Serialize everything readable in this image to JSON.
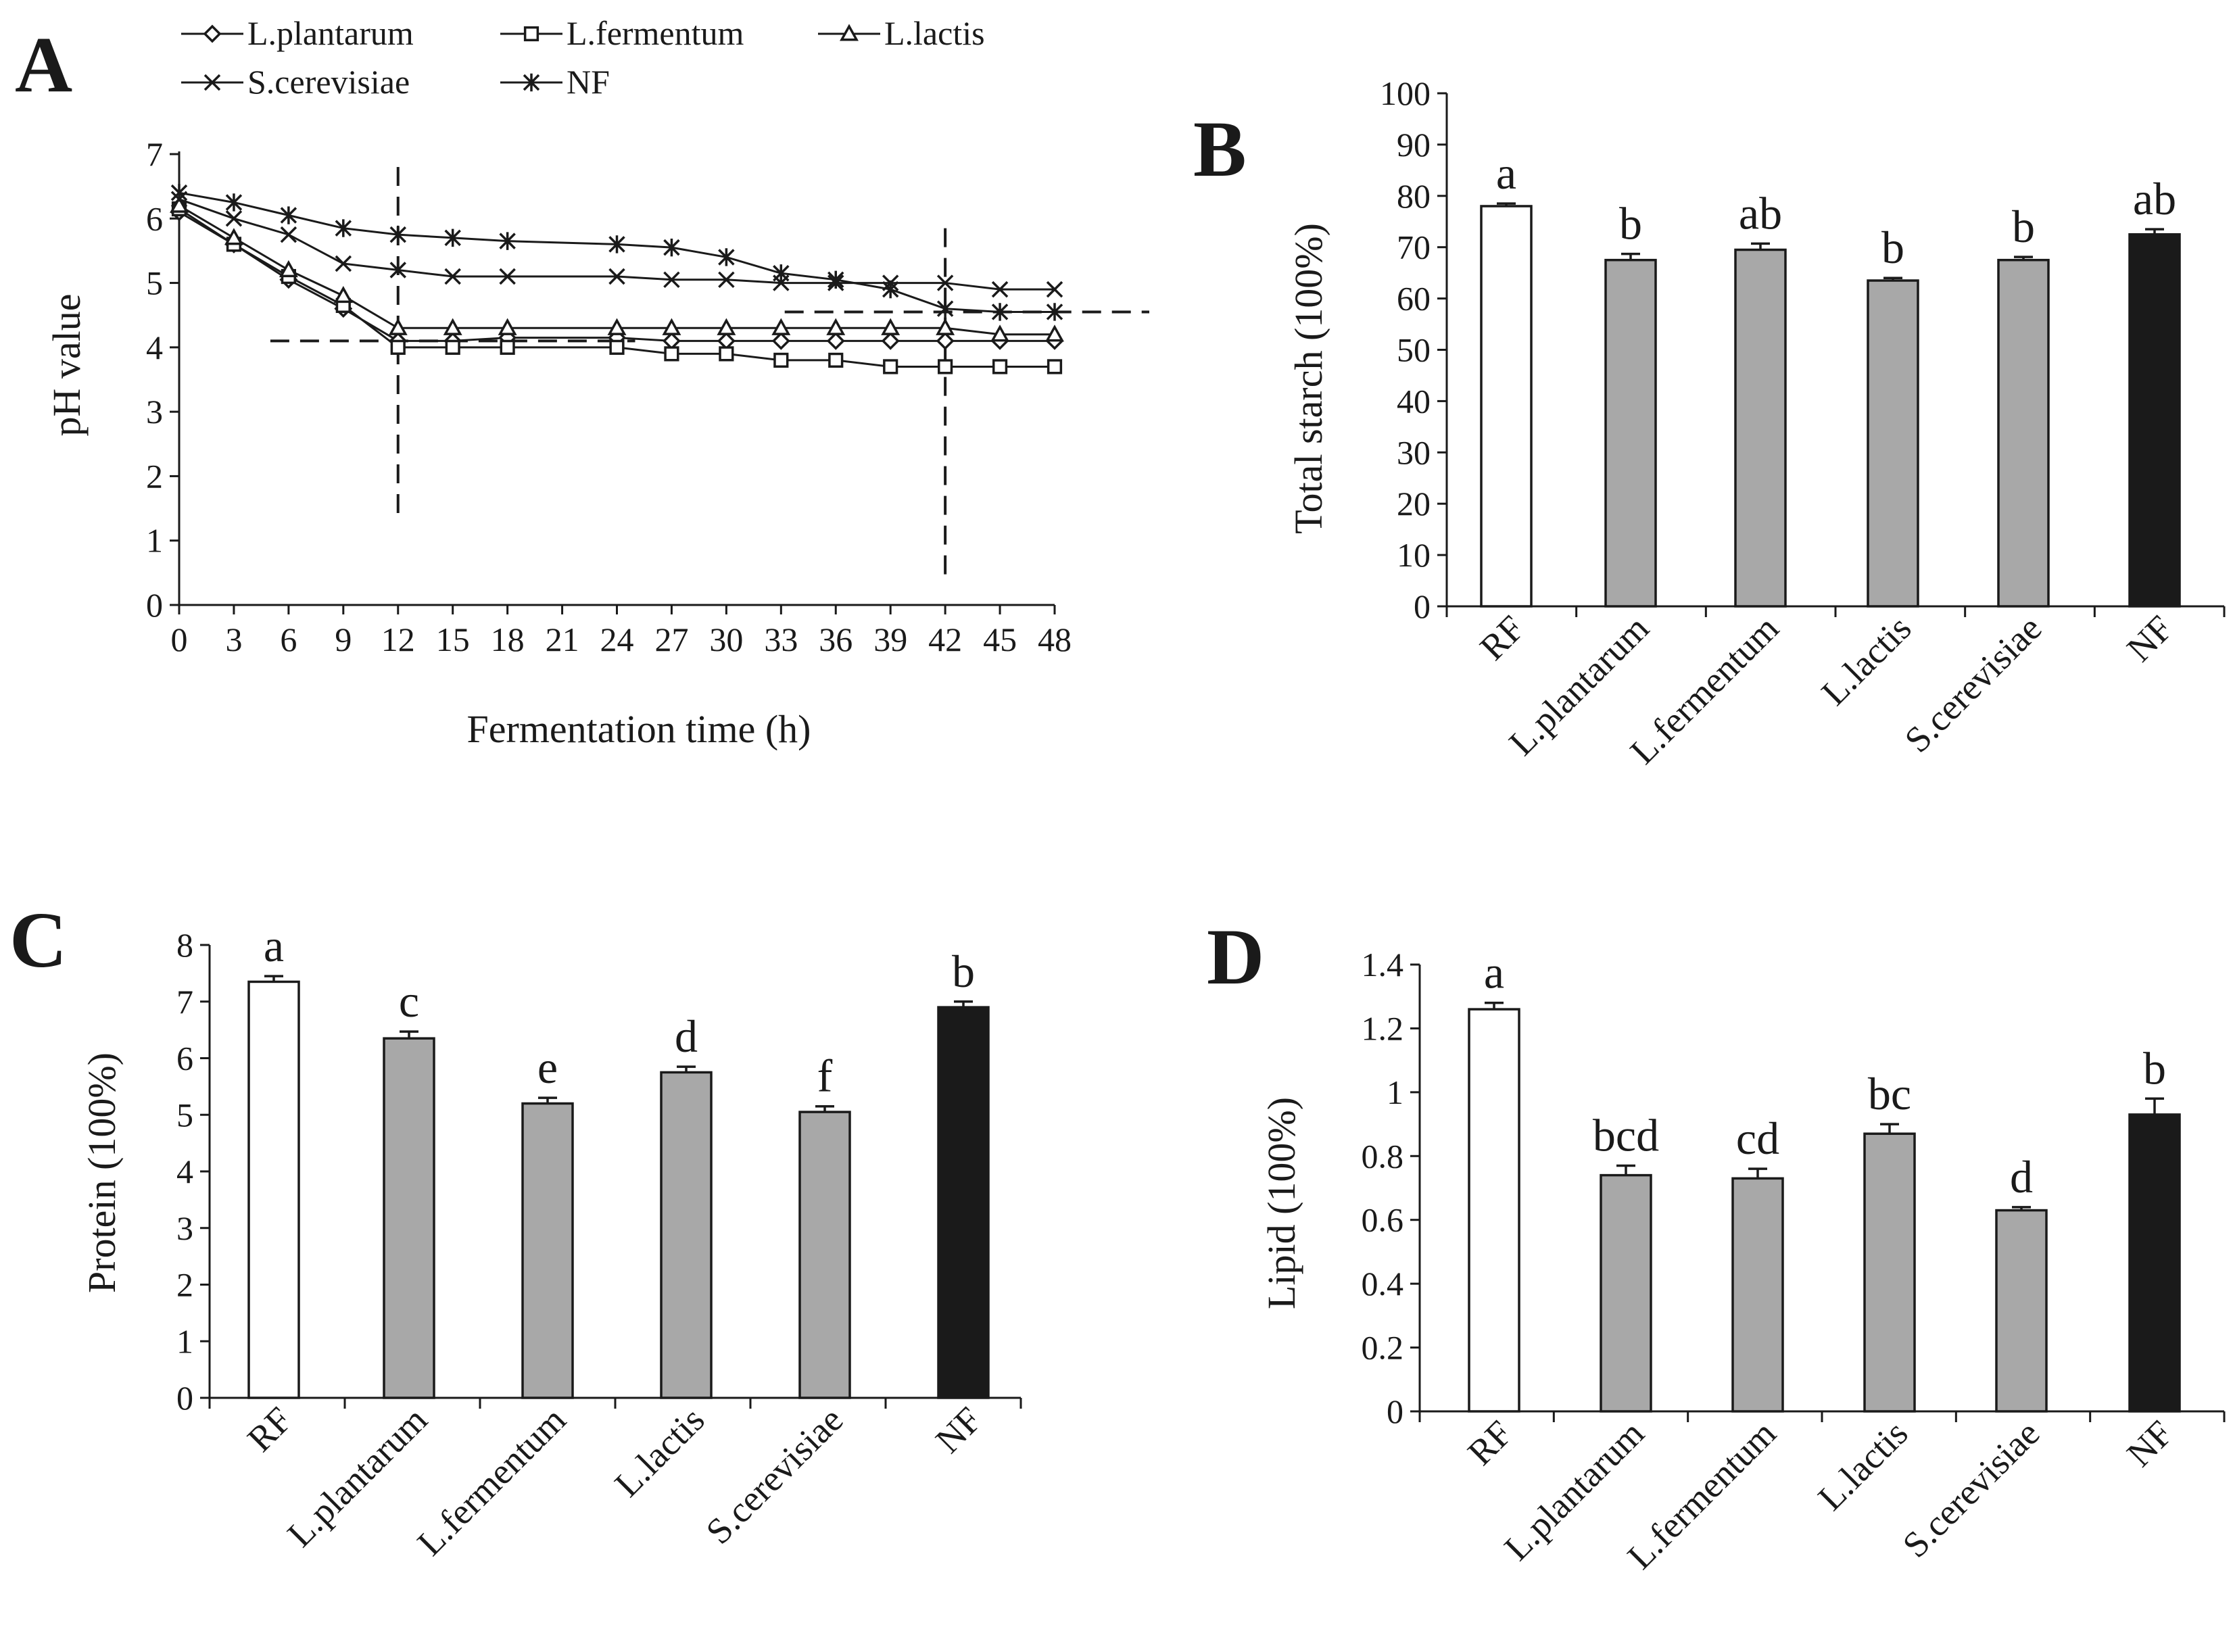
{
  "chart_data": [
    {
      "panel": "A",
      "type": "line",
      "xlabel": "Fermentation time (h)",
      "ylabel": "pH value",
      "ylim": [
        0,
        7
      ],
      "x_ticks": [
        0,
        3,
        6,
        9,
        12,
        15,
        18,
        21,
        24,
        27,
        30,
        33,
        36,
        39,
        42,
        45,
        48
      ],
      "y_ticks": [
        0,
        1,
        2,
        3,
        4,
        5,
        6,
        7
      ],
      "legend": [
        "L.plantarum",
        "L.fermentum",
        "L.lactis",
        "S.cerevisiae",
        "NF"
      ],
      "legend_position": "top",
      "series": [
        {
          "name": "L.plantarum",
          "marker": "diamond",
          "x": [
            0,
            3,
            6,
            9,
            12,
            15,
            18,
            24,
            27,
            30,
            33,
            36,
            39,
            42,
            45,
            48
          ],
          "values": [
            6.1,
            5.6,
            5.05,
            4.6,
            4.1,
            4.1,
            4.15,
            4.15,
            4.1,
            4.1,
            4.1,
            4.1,
            4.1,
            4.1,
            4.1,
            4.1
          ]
        },
        {
          "name": "L.fermentum",
          "marker": "square",
          "x": [
            0,
            3,
            6,
            9,
            12,
            15,
            18,
            24,
            27,
            30,
            33,
            36,
            39,
            42,
            45,
            48
          ],
          "values": [
            6.15,
            5.6,
            5.1,
            4.65,
            4.0,
            4.0,
            4.0,
            4.0,
            3.9,
            3.9,
            3.8,
            3.8,
            3.7,
            3.7,
            3.7,
            3.7
          ]
        },
        {
          "name": "L.lactis",
          "marker": "triangle",
          "x": [
            0,
            3,
            6,
            9,
            12,
            15,
            18,
            24,
            27,
            30,
            33,
            36,
            39,
            42,
            45,
            48
          ],
          "values": [
            6.2,
            5.7,
            5.2,
            4.8,
            4.3,
            4.3,
            4.3,
            4.3,
            4.3,
            4.3,
            4.3,
            4.3,
            4.3,
            4.3,
            4.2,
            4.2
          ]
        },
        {
          "name": "S.cerevisiae",
          "marker": "x",
          "x": [
            0,
            3,
            6,
            9,
            12,
            15,
            18,
            24,
            27,
            30,
            33,
            36,
            39,
            42,
            45,
            48
          ],
          "values": [
            6.3,
            6.0,
            5.75,
            5.3,
            5.2,
            5.1,
            5.1,
            5.1,
            5.05,
            5.05,
            5.0,
            5.0,
            5.0,
            5.0,
            4.9,
            4.9
          ]
        },
        {
          "name": "NF",
          "marker": "asterisk",
          "x": [
            0,
            3,
            6,
            9,
            12,
            15,
            18,
            24,
            27,
            30,
            33,
            36,
            39,
            42,
            45,
            48
          ],
          "values": [
            6.4,
            6.25,
            6.05,
            5.85,
            5.75,
            5.7,
            5.65,
            5.6,
            5.55,
            5.4,
            5.15,
            5.05,
            4.9,
            4.6,
            4.55,
            4.55
          ]
        }
      ],
      "reference_lines": {
        "vertical_x": [
          12,
          42
        ],
        "horizontal_y": [
          4.1,
          4.55
        ]
      }
    },
    {
      "panel": "B",
      "type": "bar",
      "categories": [
        "RF",
        "L.plantarum",
        "L.fermentum",
        "L.lactis",
        "S.cerevisiae",
        "NF"
      ],
      "values": [
        78,
        67.5,
        69.5,
        63.5,
        67.5,
        72.5
      ],
      "errors": [
        0.5,
        1.2,
        1.2,
        0.5,
        0.6,
        1.0
      ],
      "labels": [
        "a",
        "b",
        "ab",
        "b",
        "b",
        "ab"
      ],
      "colors": [
        "#ffffff",
        "#a8a8a8",
        "#a8a8a8",
        "#a8a8a8",
        "#a8a8a8",
        "#1a1a1a"
      ],
      "ylabel": "Total starch (100%)",
      "xlabel": "",
      "ylim": [
        0,
        100
      ],
      "y_ticks": [
        0,
        10,
        20,
        30,
        40,
        50,
        60,
        70,
        80,
        90,
        100
      ]
    },
    {
      "panel": "C",
      "type": "bar",
      "categories": [
        "RF",
        "L.plantarum",
        "L.fermentum",
        "L.lactis",
        "S.cerevisiae",
        "NF"
      ],
      "values": [
        7.35,
        6.35,
        5.2,
        5.75,
        5.05,
        6.9
      ],
      "errors": [
        0.1,
        0.12,
        0.1,
        0.1,
        0.1,
        0.1
      ],
      "labels": [
        "a",
        "c",
        "e",
        "d",
        "f",
        "b"
      ],
      "colors": [
        "#ffffff",
        "#a8a8a8",
        "#a8a8a8",
        "#a8a8a8",
        "#a8a8a8",
        "#1a1a1a"
      ],
      "ylabel": "Protein (100%)",
      "xlabel": "",
      "ylim": [
        0,
        8
      ],
      "y_ticks": [
        0,
        1,
        2,
        3,
        4,
        5,
        6,
        7,
        8
      ]
    },
    {
      "panel": "D",
      "type": "bar",
      "categories": [
        "RF",
        "L.plantarum",
        "L.fermentum",
        "L.lactis",
        "S.cerevisiae",
        "NF"
      ],
      "values": [
        1.26,
        0.74,
        0.73,
        0.87,
        0.63,
        0.93
      ],
      "errors": [
        0.02,
        0.03,
        0.03,
        0.03,
        0.01,
        0.05
      ],
      "labels": [
        "a",
        "bcd",
        "cd",
        "bc",
        "d",
        "b"
      ],
      "colors": [
        "#ffffff",
        "#a8a8a8",
        "#a8a8a8",
        "#a8a8a8",
        "#a8a8a8",
        "#1a1a1a"
      ],
      "ylabel": "Lipid (100%)",
      "xlabel": "",
      "ylim": [
        0,
        1.4
      ],
      "y_ticks": [
        0,
        0.2,
        0.4,
        0.6,
        0.8,
        1,
        1.2,
        1.4
      ]
    }
  ]
}
